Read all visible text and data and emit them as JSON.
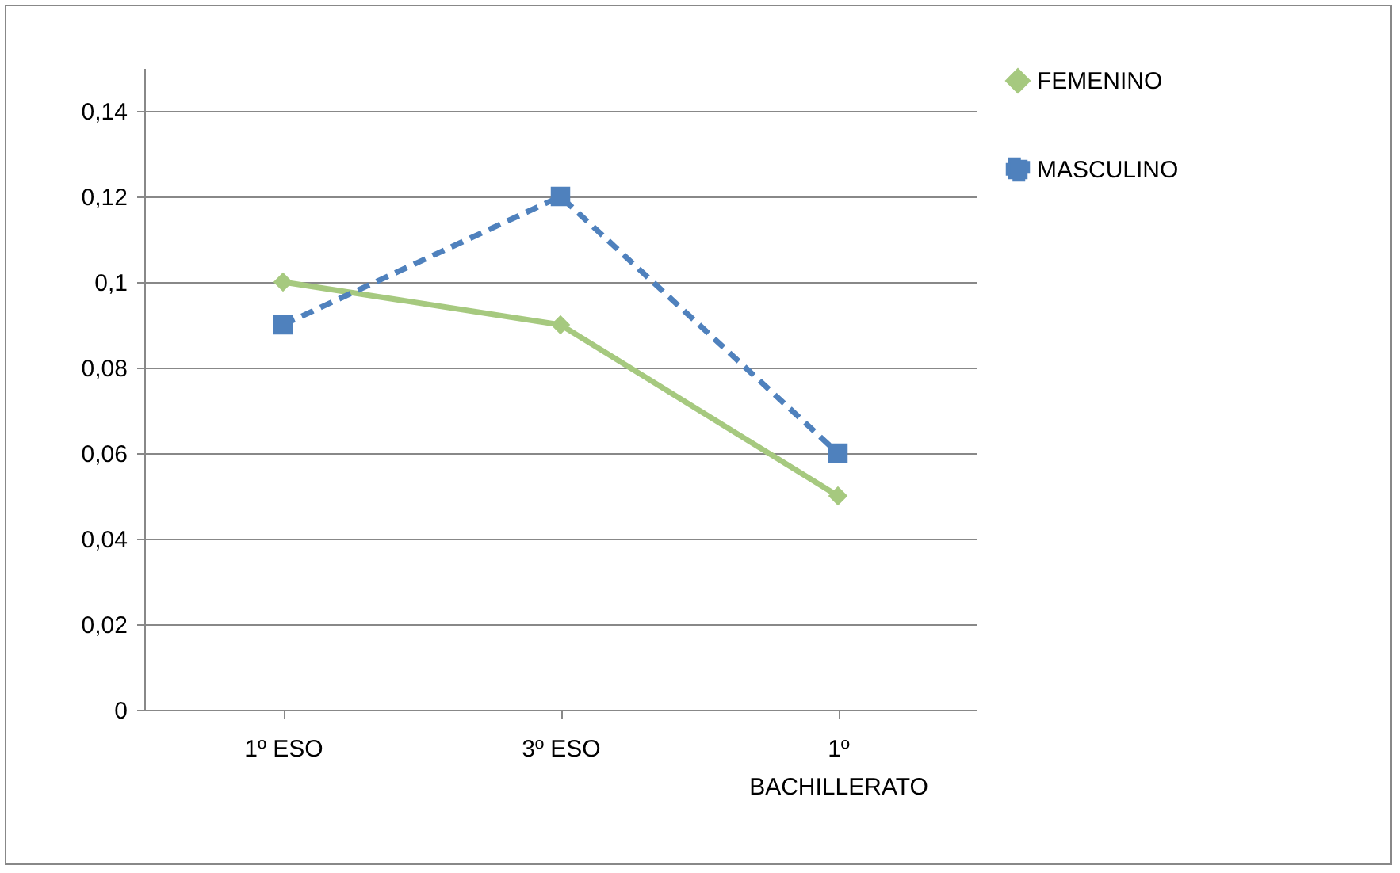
{
  "chart_data": {
    "type": "line",
    "categories": [
      "1º ESO",
      "3º ESO",
      "1º BACHILLERATO"
    ],
    "series": [
      {
        "name": "FEMENINO",
        "color": "#a6c97f",
        "values": [
          0.1,
          0.09,
          0.05
        ],
        "marker": "diamond",
        "line_style": "solid"
      },
      {
        "name": "MASCULINO",
        "color": "#4f81bd",
        "values": [
          0.09,
          0.12,
          0.06
        ],
        "marker": "square",
        "line_style": "dashed"
      }
    ],
    "ylim": [
      0,
      0.15
    ],
    "yticks": [
      0,
      {
        "value": 0.02,
        "label": "0,02"
      },
      {
        "value": 0.04,
        "label": "0,04"
      },
      {
        "value": 0.06,
        "label": "0,06"
      },
      {
        "value": 0.08,
        "label": "0,08"
      },
      {
        "value": 0.1,
        "label": "0,1"
      },
      {
        "value": 0.12,
        "label": "0,12"
      },
      {
        "value": 0.14,
        "label": "0,14"
      }
    ],
    "grid": "y",
    "legend": "right"
  }
}
